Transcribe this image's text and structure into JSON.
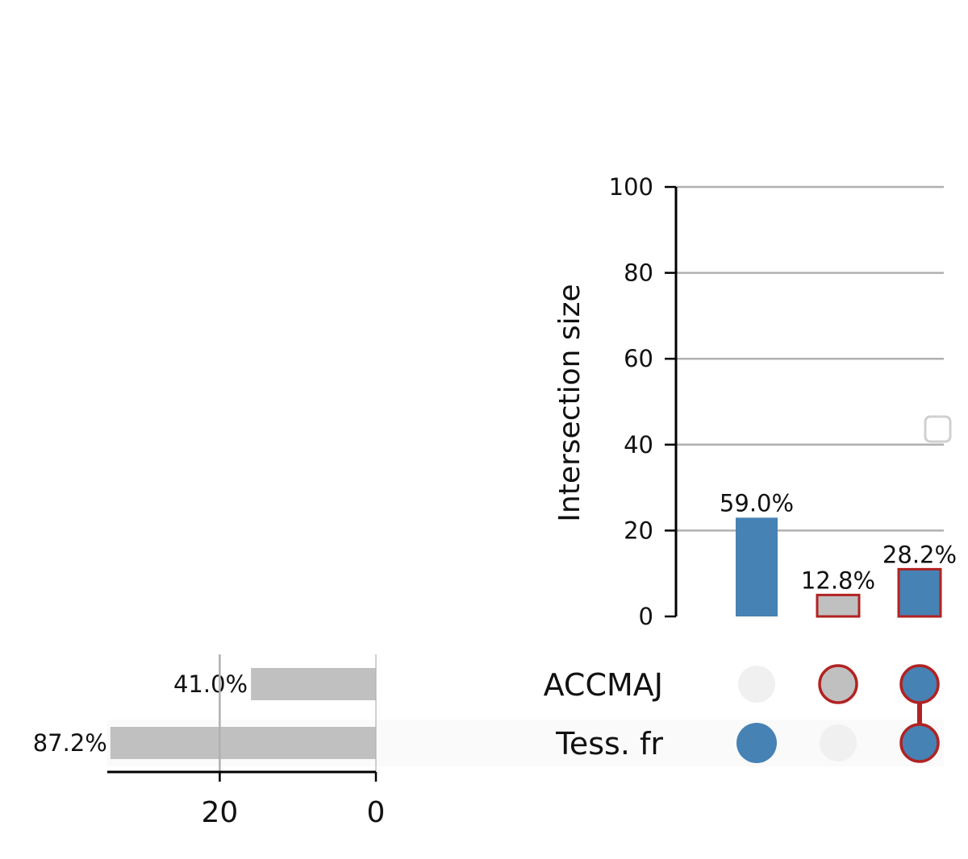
{
  "chart_data": {
    "type": "upset",
    "ylabel": "Intersection size",
    "ylim": [
      0,
      100
    ],
    "yticks": [
      0,
      20,
      40,
      60,
      80,
      100
    ],
    "grid": true,
    "sets": [
      {
        "name": "ACCMAJ",
        "size": 16,
        "label": "41.0%"
      },
      {
        "name": "Tess. fr",
        "size": 34,
        "label": "87.2%"
      }
    ],
    "set_size_ticks": [
      20,
      0
    ],
    "set_size_xlim": [
      0,
      34.4
    ],
    "intersections": [
      {
        "members": [
          "Tess. fr"
        ],
        "value": 23,
        "label": "59.0%",
        "highlighted": false
      },
      {
        "members": [
          "ACCMAJ"
        ],
        "value": 5,
        "label": "12.8%",
        "highlighted": true
      },
      {
        "members": [
          "ACCMAJ",
          "Tess. fr"
        ],
        "value": 11,
        "label": "28.2%",
        "highlighted": true
      }
    ],
    "colors": {
      "bar": "#4682b4",
      "highlight_face": "#c0c0c0",
      "highlight_edge": "#b22222",
      "inactive_dot": "#f0f0f0",
      "set_bar": "#c0c0c0",
      "grid": "#b0b0b0",
      "row_shade": "#fafafa"
    },
    "legend": {
      "placement": "center-right",
      "entries": []
    }
  }
}
